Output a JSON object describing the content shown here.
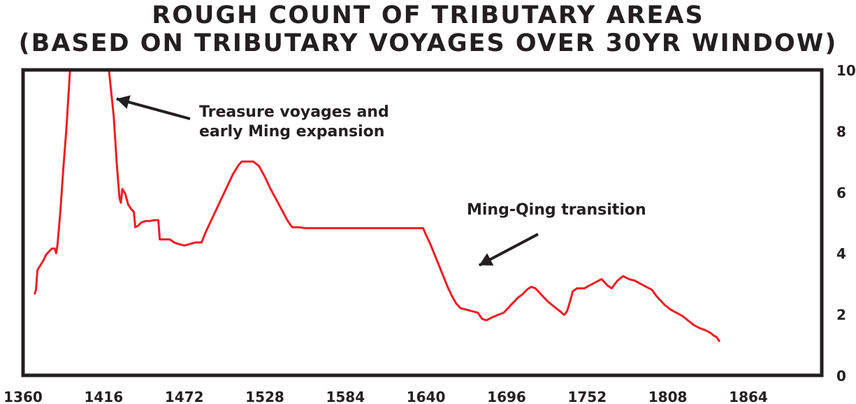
{
  "chart_data": {
    "type": "line",
    "title": "ROUGH COUNT OF TRIBUTARY AREAS",
    "subtitle": "(BASED ON TRIBUTARY VOYAGES OVER 30YR WINDOW)",
    "xlabel": "",
    "ylabel": "",
    "xlim": [
      1360,
      1915
    ],
    "ylim": [
      0,
      10
    ],
    "x_ticks": [
      1360,
      1416,
      1472,
      1528,
      1584,
      1640,
      1696,
      1752,
      1808,
      1864
    ],
    "y_ticks": [
      0,
      2,
      4,
      6,
      8,
      10
    ],
    "y_axis_side": "right",
    "grid": false,
    "line_color": "#ed1c24",
    "annotations": [
      {
        "lines": [
          "Treasure voyages and",
          "early Ming expansion"
        ],
        "points_to": {
          "x": 1423,
          "y": 9.1
        }
      },
      {
        "lines": [
          "Ming-Qing transition"
        ],
        "points_to": {
          "x": 1676,
          "y": 3.65
        }
      }
    ],
    "series": [
      {
        "points": [
          [
            1368,
            2.65
          ],
          [
            1369,
            2.8
          ],
          [
            1370,
            3.45
          ],
          [
            1372,
            3.6
          ],
          [
            1374,
            3.75
          ],
          [
            1376,
            3.95
          ],
          [
            1378,
            4.05
          ],
          [
            1380,
            4.15
          ],
          [
            1382,
            4.15
          ],
          [
            1383,
            4.0
          ],
          [
            1384,
            4.3
          ],
          [
            1386,
            5.4
          ],
          [
            1388,
            6.8
          ],
          [
            1390,
            8.0
          ],
          [
            1392,
            9.5
          ],
          [
            1393,
            10.3
          ],
          [
            1419,
            10.3
          ],
          [
            1421,
            9.4
          ],
          [
            1423,
            8.5
          ],
          [
            1425,
            7.0
          ],
          [
            1426,
            6.4
          ],
          [
            1427,
            5.8
          ],
          [
            1428,
            5.65
          ],
          [
            1429,
            6.1
          ],
          [
            1431,
            5.95
          ],
          [
            1433,
            5.6
          ],
          [
            1435,
            5.45
          ],
          [
            1437,
            5.35
          ],
          [
            1438,
            4.85
          ],
          [
            1440,
            4.9
          ],
          [
            1442,
            5.0
          ],
          [
            1445,
            5.05
          ],
          [
            1448,
            5.05
          ],
          [
            1451,
            5.08
          ],
          [
            1454,
            5.08
          ],
          [
            1455,
            4.45
          ],
          [
            1458,
            4.45
          ],
          [
            1462,
            4.45
          ],
          [
            1465,
            4.35
          ],
          [
            1468,
            4.3
          ],
          [
            1472,
            4.25
          ],
          [
            1476,
            4.3
          ],
          [
            1480,
            4.35
          ],
          [
            1484,
            4.35
          ],
          [
            1487,
            4.7
          ],
          [
            1490,
            5.0
          ],
          [
            1494,
            5.4
          ],
          [
            1498,
            5.8
          ],
          [
            1502,
            6.2
          ],
          [
            1506,
            6.6
          ],
          [
            1510,
            6.9
          ],
          [
            1512,
            7.0
          ],
          [
            1520,
            7.0
          ],
          [
            1524,
            6.85
          ],
          [
            1528,
            6.5
          ],
          [
            1532,
            6.1
          ],
          [
            1536,
            5.75
          ],
          [
            1540,
            5.4
          ],
          [
            1544,
            5.05
          ],
          [
            1547,
            4.85
          ],
          [
            1552,
            4.85
          ],
          [
            1556,
            4.82
          ],
          [
            1600,
            4.82
          ],
          [
            1638,
            4.82
          ],
          [
            1640,
            4.6
          ],
          [
            1643,
            4.3
          ],
          [
            1646,
            3.95
          ],
          [
            1649,
            3.6
          ],
          [
            1652,
            3.25
          ],
          [
            1655,
            2.9
          ],
          [
            1658,
            2.6
          ],
          [
            1661,
            2.35
          ],
          [
            1664,
            2.2
          ],
          [
            1668,
            2.15
          ],
          [
            1672,
            2.1
          ],
          [
            1676,
            2.05
          ],
          [
            1679,
            1.85
          ],
          [
            1682,
            1.8
          ],
          [
            1686,
            1.9
          ],
          [
            1690,
            1.98
          ],
          [
            1694,
            2.05
          ],
          [
            1697,
            2.2
          ],
          [
            1700,
            2.35
          ],
          [
            1704,
            2.55
          ],
          [
            1707,
            2.65
          ],
          [
            1710,
            2.8
          ],
          [
            1713,
            2.9
          ],
          [
            1716,
            2.85
          ],
          [
            1719,
            2.7
          ],
          [
            1722,
            2.55
          ],
          [
            1725,
            2.4
          ],
          [
            1729,
            2.25
          ],
          [
            1733,
            2.1
          ],
          [
            1736,
            1.98
          ],
          [
            1738,
            2.1
          ],
          [
            1740,
            2.4
          ],
          [
            1742,
            2.75
          ],
          [
            1745,
            2.85
          ],
          [
            1750,
            2.85
          ],
          [
            1754,
            2.95
          ],
          [
            1758,
            3.05
          ],
          [
            1762,
            3.15
          ],
          [
            1764,
            3.05
          ],
          [
            1766,
            2.95
          ],
          [
            1769,
            2.85
          ],
          [
            1773,
            3.1
          ],
          [
            1777,
            3.25
          ],
          [
            1781,
            3.15
          ],
          [
            1785,
            3.1
          ],
          [
            1789,
            3.0
          ],
          [
            1793,
            2.9
          ],
          [
            1797,
            2.8
          ],
          [
            1800,
            2.6
          ],
          [
            1803,
            2.45
          ],
          [
            1806,
            2.3
          ],
          [
            1810,
            2.15
          ],
          [
            1814,
            2.05
          ],
          [
            1818,
            1.95
          ],
          [
            1822,
            1.8
          ],
          [
            1826,
            1.65
          ],
          [
            1830,
            1.55
          ],
          [
            1834,
            1.48
          ],
          [
            1838,
            1.38
          ],
          [
            1840,
            1.3
          ],
          [
            1842,
            1.25
          ],
          [
            1844,
            1.1
          ]
        ]
      }
    ]
  }
}
